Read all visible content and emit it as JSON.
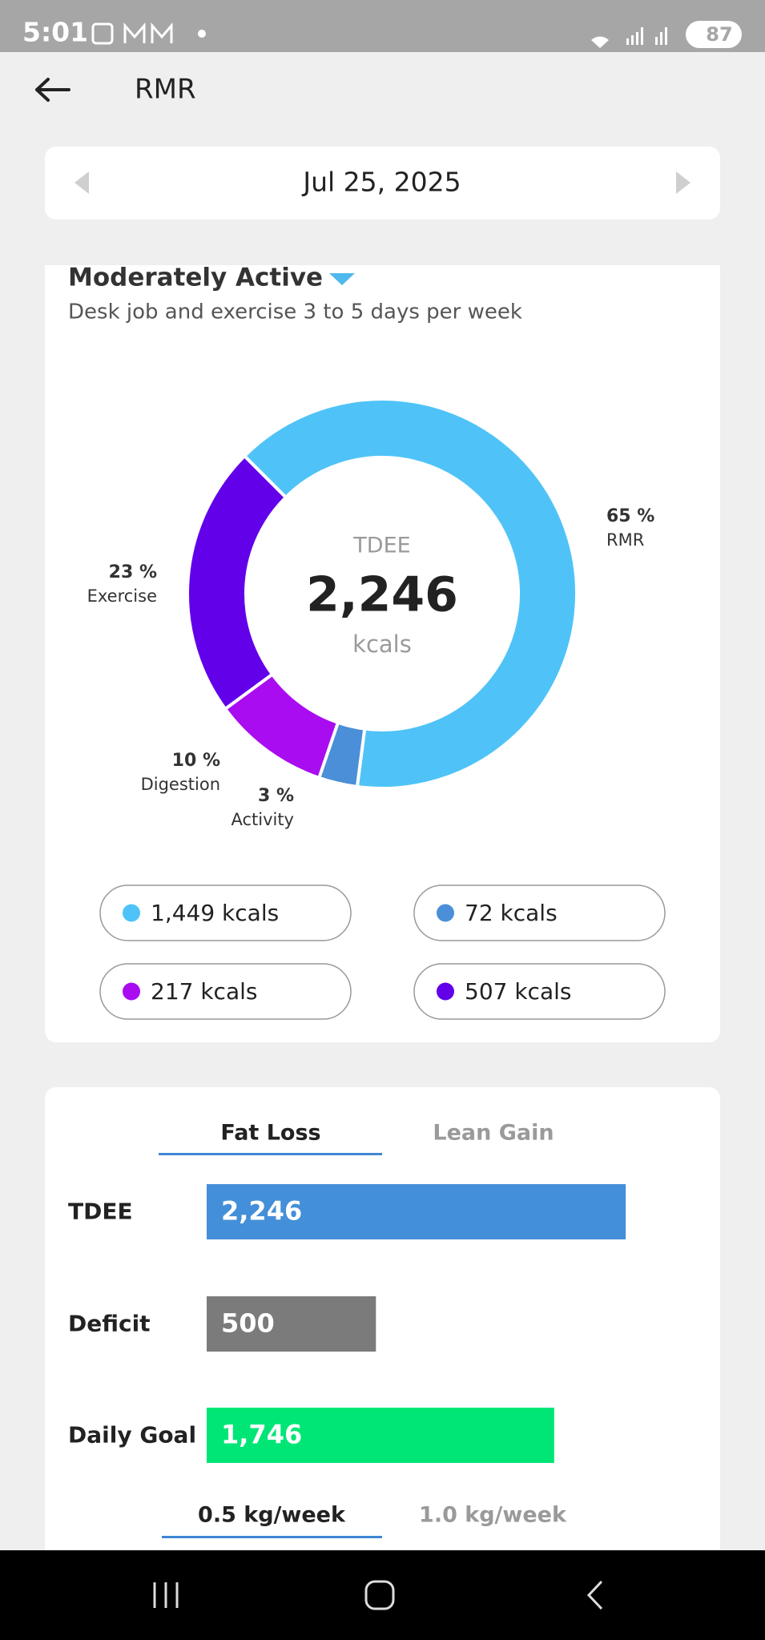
{
  "status_bar": {
    "time": "5:01",
    "battery": "87"
  },
  "header": {
    "title": "RMR"
  },
  "date": "Jul 25, 2025",
  "activity": {
    "level": "Moderately Active",
    "description": "Desk job and exercise 3 to 5 days per week"
  },
  "chart_data": [
    {
      "type": "donut",
      "center": {
        "title": "TDEE",
        "value": "2,246",
        "unit": "kcals"
      },
      "categories": [
        "RMR",
        "Activity",
        "Digestion",
        "Exercise"
      ],
      "values": [
        1449,
        72,
        217,
        507
      ],
      "value_labels": [
        "1,449 kcals",
        "72 kcals",
        "217 kcals",
        "507 kcals"
      ],
      "percent_labels": [
        "65 %",
        "3 %",
        "10 %",
        "23 %"
      ],
      "colors": [
        "#4fc3f7",
        "#4a8fd8",
        "#a90cf0",
        "#6200ea"
      ]
    },
    {
      "type": "bar",
      "tabs": [
        "Fat Loss",
        "Lean Gain"
      ],
      "categories": [
        "TDEE",
        "Deficit",
        "Daily Goal"
      ],
      "values": [
        2246,
        500,
        1746
      ],
      "value_labels": [
        "2,246",
        "500",
        "1,746"
      ],
      "colors": [
        "#448fd9",
        "#7b7b7b",
        "#00e676"
      ],
      "rate_tabs": [
        "0.5 kg/week",
        "1.0 kg/week"
      ]
    }
  ]
}
